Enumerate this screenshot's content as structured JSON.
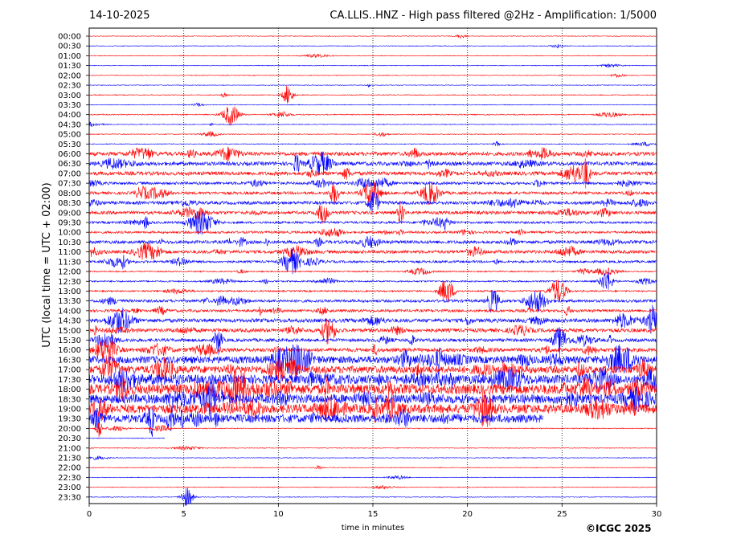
{
  "date": "14-10-2025",
  "title": "CA.LLIS..HNZ - High pass filtered @2Hz - Amplification: 1/5000",
  "copyright": "©ICGC 2025",
  "chart_data": {
    "type": "line",
    "title": "CA.LLIS..HNZ - High pass filtered @2Hz - Amplification: 1/5000",
    "xlabel": "time in minutes",
    "ylabel": "UTC (local time = UTC + 02:00)",
    "xlim": [
      0,
      30
    ],
    "xticks": [
      0,
      5,
      10,
      15,
      20,
      25,
      30
    ],
    "vertical_grid": "dotted at 5, 10, 15, 20, 25 minutes",
    "row_labels": [
      "00:00",
      "00:30",
      "01:00",
      "01:30",
      "02:00",
      "02:30",
      "03:00",
      "03:30",
      "04:00",
      "04:30",
      "05:00",
      "05:30",
      "06:00",
      "06:30",
      "07:00",
      "07:30",
      "08:00",
      "08:30",
      "09:00",
      "09:30",
      "10:00",
      "10:30",
      "11:00",
      "11:30",
      "12:00",
      "12:30",
      "13:00",
      "13:30",
      "14:00",
      "14:30",
      "15:00",
      "15:30",
      "16:00",
      "16:30",
      "17:00",
      "17:30",
      "18:00",
      "18:30",
      "19:00",
      "19:30",
      "20:00",
      "20:30",
      "21:00",
      "21:30",
      "22:00",
      "22:30",
      "23:00",
      "23:30"
    ],
    "trace_colors": [
      "#ff0000",
      "#0000ff"
    ],
    "activity_level": [
      0.05,
      0.04,
      0.05,
      0.05,
      0.05,
      0.05,
      0.12,
      0.07,
      0.2,
      0.1,
      0.12,
      0.12,
      0.55,
      0.55,
      0.55,
      0.45,
      0.45,
      0.5,
      0.5,
      0.4,
      0.4,
      0.5,
      0.5,
      0.4,
      0.25,
      0.3,
      0.3,
      0.45,
      0.45,
      0.55,
      0.55,
      0.5,
      0.55,
      0.8,
      0.8,
      0.9,
      0.95,
      0.9,
      0.9,
      0.85,
      0.15,
      0.08,
      0.04,
      0.04,
      0.04,
      0.04,
      0.04,
      0.04
    ],
    "data_end_minute": {
      "19:30": 24,
      "20:00": 30,
      "20:30": 4
    }
  }
}
